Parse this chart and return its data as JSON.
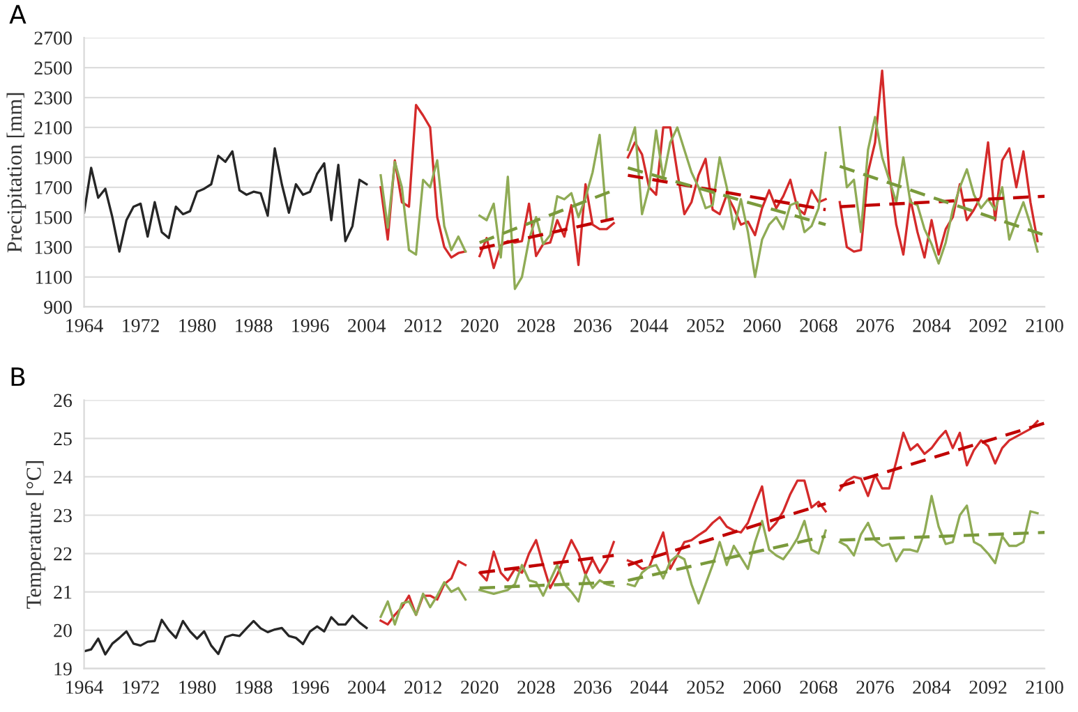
{
  "chart_data": [
    {
      "type": "line",
      "title": "A",
      "ylabel": "Precipitation [mm]",
      "xlim": [
        1964,
        2100
      ],
      "xticks": [
        1964,
        1972,
        1980,
        1988,
        1996,
        2004,
        2012,
        2020,
        2028,
        2036,
        2044,
        2052,
        2060,
        2068,
        2076,
        2084,
        2092,
        2100
      ],
      "ylim": [
        900,
        2700
      ],
      "yticks": [
        900,
        1100,
        1300,
        1500,
        1700,
        1900,
        2100,
        2300,
        2500,
        2700
      ],
      "grid": "y",
      "marker": "none",
      "series": [
        {
          "color": "#262626",
          "line_style": "solid",
          "x": [
            1964,
            1965,
            1966,
            1967,
            1968,
            1969,
            1970,
            1971,
            1972,
            1973,
            1974,
            1975,
            1976,
            1977,
            1978,
            1979,
            1980,
            1981,
            1982,
            1983,
            1984,
            1985,
            1986,
            1987,
            1988,
            1989,
            1990,
            1991,
            1992,
            1993,
            1994,
            1995,
            1996,
            1997,
            1998,
            1999,
            2000,
            2001,
            2002,
            2003,
            2004
          ],
          "values": [
            1530,
            1830,
            1630,
            1690,
            1500,
            1270,
            1480,
            1570,
            1590,
            1370,
            1600,
            1400,
            1360,
            1570,
            1520,
            1540,
            1670,
            1690,
            1720,
            1910,
            1870,
            1940,
            1680,
            1650,
            1670,
            1660,
            1510,
            1960,
            1720,
            1530,
            1720,
            1650,
            1670,
            1790,
            1860,
            1480,
            1850,
            1340,
            1440,
            1750,
            1720
          ]
        },
        {
          "color": "#d42a2a",
          "line_style": "solid",
          "x": [
            2006,
            2007,
            2008,
            2009,
            2010,
            2011,
            2012,
            2013,
            2014,
            2015,
            2016,
            2017,
            2018
          ],
          "values": [
            1700,
            1350,
            1880,
            1600,
            1570,
            2250,
            2180,
            2100,
            1500,
            1300,
            1230,
            1260,
            1270
          ]
        },
        {
          "color": "#8fab55",
          "line_style": "solid",
          "x": [
            2006,
            2007,
            2008,
            2009,
            2010,
            2011,
            2012,
            2013,
            2014,
            2015,
            2016,
            2017,
            2018
          ],
          "values": [
            1780,
            1430,
            1870,
            1700,
            1280,
            1250,
            1750,
            1700,
            1880,
            1440,
            1280,
            1370,
            1270
          ]
        },
        {
          "color": "#d42a2a",
          "line_style": "solid",
          "x": [
            2020,
            2021,
            2022,
            2023,
            2024,
            2025,
            2026,
            2027,
            2028,
            2029,
            2030,
            2031,
            2032,
            2033,
            2034,
            2035,
            2036,
            2037,
            2038,
            2039
          ],
          "values": [
            1240,
            1360,
            1160,
            1310,
            1340,
            1330,
            1340,
            1590,
            1240,
            1320,
            1330,
            1480,
            1370,
            1580,
            1180,
            1720,
            1450,
            1420,
            1420,
            1460
          ]
        },
        {
          "color": "#8fab55",
          "line_style": "solid",
          "x": [
            2020,
            2021,
            2022,
            2023,
            2024,
            2025,
            2026,
            2027,
            2028,
            2029,
            2030,
            2031,
            2032,
            2033,
            2034,
            2035,
            2036,
            2037,
            2038
          ],
          "values": [
            1510,
            1480,
            1590,
            1230,
            1770,
            1020,
            1100,
            1350,
            1500,
            1320,
            1380,
            1640,
            1620,
            1660,
            1500,
            1630,
            1800,
            2050,
            1480
          ]
        },
        {
          "color": "#d42a2a",
          "line_style": "solid",
          "x": [
            2041,
            2042,
            2043,
            2044,
            2045,
            2046,
            2047,
            2048,
            2049,
            2050,
            2051,
            2052,
            2053,
            2054,
            2055,
            2056,
            2057,
            2058,
            2059,
            2060,
            2061,
            2062,
            2063,
            2064,
            2065,
            2066,
            2067,
            2068,
            2069
          ],
          "values": [
            1900,
            2000,
            1920,
            1700,
            1650,
            2100,
            2100,
            1800,
            1520,
            1600,
            1780,
            1890,
            1550,
            1520,
            1650,
            1560,
            1450,
            1470,
            1380,
            1560,
            1680,
            1560,
            1640,
            1750,
            1560,
            1520,
            1680,
            1600,
            1620
          ]
        },
        {
          "color": "#8fab55",
          "line_style": "solid",
          "x": [
            2041,
            2042,
            2043,
            2044,
            2045,
            2046,
            2047,
            2048,
            2049,
            2050,
            2051,
            2052,
            2053,
            2054,
            2055,
            2056,
            2057,
            2058,
            2059,
            2060,
            2061,
            2062,
            2063,
            2064,
            2065,
            2066,
            2067,
            2068,
            2069
          ],
          "values": [
            1950,
            2100,
            1520,
            1700,
            2080,
            1760,
            2000,
            2100,
            1950,
            1800,
            1700,
            1560,
            1580,
            1900,
            1700,
            1420,
            1620,
            1400,
            1100,
            1350,
            1450,
            1500,
            1420,
            1580,
            1600,
            1400,
            1440,
            1560,
            1930
          ]
        },
        {
          "color": "#d42a2a",
          "line_style": "solid",
          "x": [
            2071,
            2072,
            2073,
            2074,
            2075,
            2076,
            2077,
            2078,
            2079,
            2080,
            2081,
            2082,
            2083,
            2084,
            2085,
            2086,
            2087,
            2088,
            2089,
            2090,
            2091,
            2092,
            2093,
            2094,
            2095,
            2096,
            2097,
            2098,
            2099
          ],
          "values": [
            1600,
            1300,
            1270,
            1280,
            1800,
            2000,
            2480,
            1800,
            1450,
            1250,
            1620,
            1400,
            1230,
            1480,
            1250,
            1420,
            1500,
            1720,
            1480,
            1550,
            1640,
            2000,
            1480,
            1880,
            1960,
            1700,
            1940,
            1600,
            1340
          ]
        },
        {
          "color": "#8fab55",
          "line_style": "solid",
          "x": [
            2071,
            2072,
            2073,
            2074,
            2075,
            2076,
            2077,
            2078,
            2079,
            2080,
            2081,
            2082,
            2083,
            2084,
            2085,
            2086,
            2087,
            2088,
            2089,
            2090,
            2091,
            2092,
            2093,
            2094,
            2095,
            2096,
            2097,
            2098,
            2099
          ],
          "values": [
            2100,
            1700,
            1750,
            1400,
            1950,
            2170,
            1900,
            1750,
            1600,
            1900,
            1600,
            1580,
            1420,
            1320,
            1190,
            1330,
            1550,
            1700,
            1820,
            1650,
            1560,
            1620,
            1550,
            1700,
            1350,
            1480,
            1600,
            1450,
            1270
          ]
        },
        {
          "color": "#c00000",
          "line_style": "dashed",
          "x": [
            2020,
            2039
          ],
          "values": [
            1290,
            1490
          ]
        },
        {
          "color": "#7a9a3c",
          "line_style": "dashed",
          "x": [
            2020,
            2039
          ],
          "values": [
            1330,
            1680
          ]
        },
        {
          "color": "#c00000",
          "line_style": "dashed",
          "x": [
            2041,
            2069
          ],
          "values": [
            1780,
            1550
          ]
        },
        {
          "color": "#7a9a3c",
          "line_style": "dashed",
          "x": [
            2041,
            2069
          ],
          "values": [
            1830,
            1450
          ]
        },
        {
          "color": "#c00000",
          "line_style": "dashed",
          "x": [
            2071,
            2100
          ],
          "values": [
            1570,
            1640
          ]
        },
        {
          "color": "#7a9a3c",
          "line_style": "dashed",
          "x": [
            2071,
            2100
          ],
          "values": [
            1840,
            1380
          ]
        }
      ]
    },
    {
      "type": "line",
      "title": "B",
      "ylabel": "Temperature [°C]",
      "xlim": [
        1964,
        2100
      ],
      "xticks": [
        1964,
        1972,
        1980,
        1988,
        1996,
        2004,
        2012,
        2020,
        2028,
        2036,
        2044,
        2052,
        2060,
        2068,
        2076,
        2084,
        2092,
        2100
      ],
      "ylim": [
        19,
        26
      ],
      "yticks": [
        19,
        20,
        21,
        22,
        23,
        24,
        25,
        26
      ],
      "grid": "y",
      "marker": "none",
      "series": [
        {
          "color": "#262626",
          "line_style": "solid",
          "x": [
            1964,
            1965,
            1966,
            1967,
            1968,
            1969,
            1970,
            1971,
            1972,
            1973,
            1974,
            1975,
            1976,
            1977,
            1978,
            1979,
            1980,
            1981,
            1982,
            1983,
            1984,
            1985,
            1986,
            1987,
            1988,
            1989,
            1990,
            1991,
            1992,
            1993,
            1994,
            1995,
            1996,
            1997,
            1998,
            1999,
            2000,
            2001,
            2002,
            2003,
            2004
          ],
          "values": [
            19.45,
            19.5,
            19.78,
            19.37,
            19.65,
            19.8,
            19.97,
            19.65,
            19.6,
            19.7,
            19.72,
            20.27,
            20.0,
            19.8,
            20.24,
            19.97,
            19.78,
            19.97,
            19.6,
            19.38,
            19.82,
            19.88,
            19.85,
            20.05,
            20.24,
            20.05,
            19.95,
            20.02,
            20.06,
            19.85,
            19.8,
            19.64,
            19.97,
            20.1,
            19.97,
            20.34,
            20.15,
            20.15,
            20.38,
            20.2,
            20.06
          ]
        },
        {
          "color": "#d42a2a",
          "line_style": "solid",
          "x": [
            2006,
            2007,
            2008,
            2009,
            2010,
            2011,
            2012,
            2013,
            2014,
            2015,
            2016,
            2017,
            2018
          ],
          "values": [
            20.25,
            20.15,
            20.4,
            20.6,
            20.9,
            20.4,
            20.9,
            20.9,
            20.8,
            21.2,
            21.35,
            21.8,
            21.7
          ]
        },
        {
          "color": "#8fab55",
          "line_style": "solid",
          "x": [
            2006,
            2007,
            2008,
            2009,
            2010,
            2011,
            2012,
            2013,
            2014,
            2015,
            2016,
            2017,
            2018
          ],
          "values": [
            20.35,
            20.75,
            20.15,
            20.7,
            20.75,
            20.4,
            20.95,
            20.6,
            20.9,
            21.25,
            21.0,
            21.1,
            20.8
          ]
        },
        {
          "color": "#d42a2a",
          "line_style": "solid",
          "x": [
            2020,
            2021,
            2022,
            2023,
            2024,
            2025,
            2026,
            2027,
            2028,
            2029,
            2030,
            2031,
            2032,
            2033,
            2034,
            2035,
            2036,
            2037,
            2038,
            2039
          ],
          "values": [
            21.5,
            21.3,
            22.05,
            21.5,
            21.3,
            21.6,
            21.5,
            22.0,
            22.35,
            21.7,
            21.1,
            21.45,
            21.9,
            22.35,
            22.0,
            21.45,
            21.85,
            21.5,
            21.8,
            22.3
          ]
        },
        {
          "color": "#8fab55",
          "line_style": "solid",
          "x": [
            2020,
            2021,
            2022,
            2023,
            2024,
            2025,
            2026,
            2027,
            2028,
            2029,
            2030,
            2031,
            2032,
            2033,
            2034,
            2035,
            2036,
            2037,
            2038,
            2039
          ],
          "values": [
            21.05,
            21.0,
            20.95,
            21.0,
            21.05,
            21.2,
            21.7,
            21.3,
            21.25,
            20.9,
            21.3,
            21.7,
            21.2,
            21.0,
            20.75,
            21.45,
            21.1,
            21.3,
            21.2,
            21.15
          ]
        },
        {
          "color": "#d42a2a",
          "line_style": "solid",
          "x": [
            2041,
            2042,
            2043,
            2044,
            2045,
            2046,
            2047,
            2048,
            2049,
            2050,
            2051,
            2052,
            2053,
            2054,
            2055,
            2056,
            2057,
            2058,
            2059,
            2060,
            2061,
            2062,
            2063,
            2064,
            2065,
            2066,
            2067,
            2068,
            2069
          ],
          "values": [
            21.82,
            21.75,
            21.6,
            21.64,
            22.1,
            22.55,
            21.6,
            21.95,
            22.3,
            22.35,
            22.48,
            22.6,
            22.8,
            22.95,
            22.7,
            22.6,
            22.55,
            22.8,
            23.3,
            23.75,
            22.6,
            22.8,
            23.1,
            23.55,
            23.9,
            23.9,
            23.2,
            23.35,
            23.1
          ]
        },
        {
          "color": "#8fab55",
          "line_style": "solid",
          "x": [
            2041,
            2042,
            2043,
            2044,
            2045,
            2046,
            2047,
            2048,
            2049,
            2050,
            2051,
            2052,
            2053,
            2054,
            2055,
            2056,
            2057,
            2058,
            2059,
            2060,
            2061,
            2062,
            2063,
            2064,
            2065,
            2066,
            2067,
            2068,
            2069
          ],
          "values": [
            21.2,
            21.15,
            21.5,
            21.65,
            21.7,
            21.35,
            21.8,
            21.95,
            21.85,
            21.2,
            20.7,
            21.2,
            21.7,
            22.3,
            21.7,
            22.2,
            21.9,
            21.6,
            22.3,
            22.85,
            22.1,
            21.95,
            21.85,
            22.1,
            22.4,
            22.85,
            22.1,
            22.0,
            22.6
          ]
        },
        {
          "color": "#d42a2a",
          "line_style": "solid",
          "x": [
            2071,
            2072,
            2073,
            2074,
            2075,
            2076,
            2077,
            2078,
            2079,
            2080,
            2081,
            2082,
            2083,
            2084,
            2085,
            2086,
            2087,
            2088,
            2089,
            2090,
            2091,
            2092,
            2093,
            2094,
            2095,
            2096,
            2097,
            2098,
            2099
          ],
          "values": [
            23.65,
            23.9,
            24.0,
            23.95,
            23.5,
            24.05,
            23.7,
            23.7,
            24.4,
            25.15,
            24.7,
            24.85,
            24.6,
            24.75,
            25.0,
            25.2,
            24.75,
            25.15,
            24.3,
            24.7,
            24.95,
            24.8,
            24.35,
            24.75,
            24.95,
            25.05,
            25.15,
            25.25,
            25.45
          ]
        },
        {
          "color": "#8fab55",
          "line_style": "solid",
          "x": [
            2071,
            2072,
            2073,
            2074,
            2075,
            2076,
            2077,
            2078,
            2079,
            2080,
            2081,
            2082,
            2083,
            2084,
            2085,
            2086,
            2087,
            2088,
            2089,
            2090,
            2091,
            2092,
            2093,
            2094,
            2095,
            2096,
            2097,
            2098,
            2099
          ],
          "values": [
            22.3,
            22.2,
            21.95,
            22.5,
            22.8,
            22.35,
            22.2,
            22.25,
            21.8,
            22.1,
            22.1,
            22.05,
            22.55,
            23.5,
            22.7,
            22.25,
            22.3,
            23.0,
            23.25,
            22.3,
            22.2,
            22.0,
            21.75,
            22.45,
            22.2,
            22.2,
            22.3,
            23.1,
            23.05
          ]
        },
        {
          "color": "#c00000",
          "line_style": "dashed",
          "x": [
            2020,
            2039
          ],
          "values": [
            21.5,
            21.95
          ]
        },
        {
          "color": "#7a9a3c",
          "line_style": "dashed",
          "x": [
            2020,
            2039
          ],
          "values": [
            21.1,
            21.25
          ]
        },
        {
          "color": "#c00000",
          "line_style": "dashed",
          "x": [
            2041,
            2069
          ],
          "values": [
            21.7,
            23.3
          ]
        },
        {
          "color": "#7a9a3c",
          "line_style": "dashed",
          "x": [
            2041,
            2069
          ],
          "values": [
            21.3,
            22.45
          ]
        },
        {
          "color": "#c00000",
          "line_style": "dashed",
          "x": [
            2071,
            2100
          ],
          "values": [
            23.75,
            25.4
          ]
        },
        {
          "color": "#7a9a3c",
          "line_style": "dashed",
          "x": [
            2071,
            2100
          ],
          "values": [
            22.35,
            22.55
          ]
        }
      ]
    }
  ]
}
